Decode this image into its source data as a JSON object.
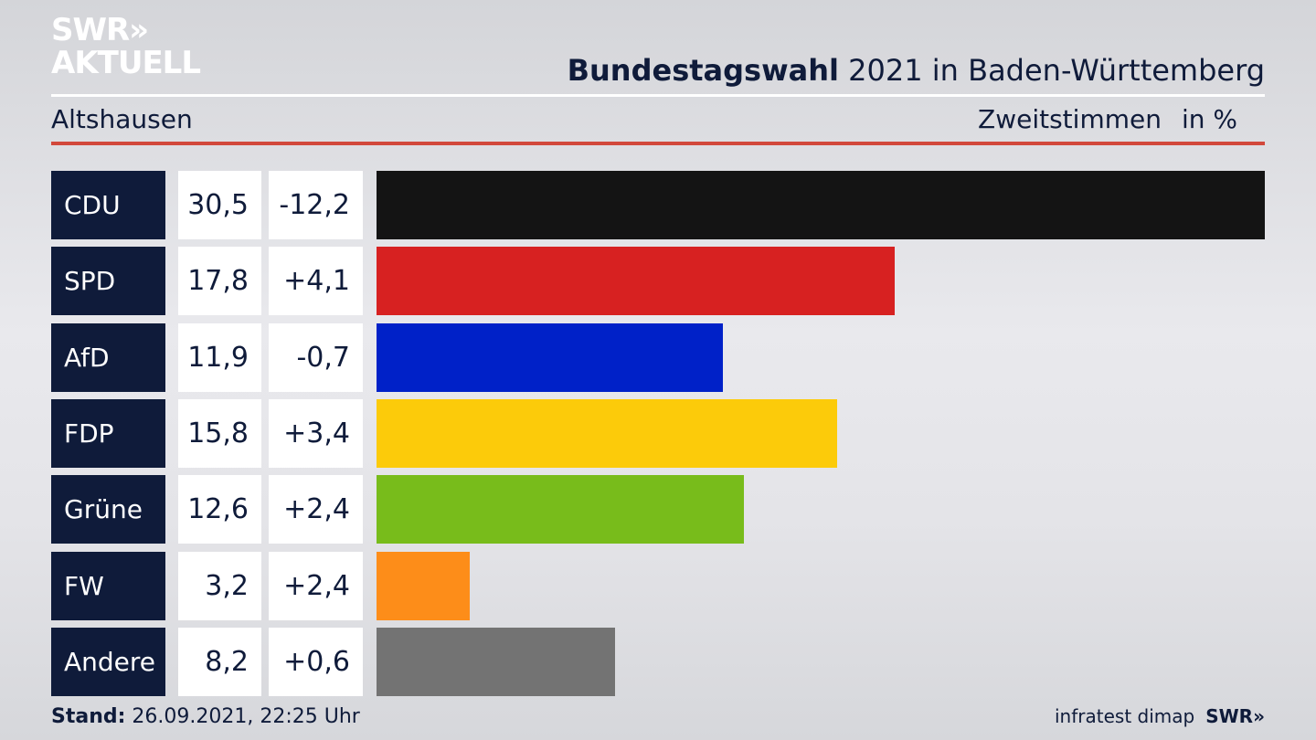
{
  "header": {
    "logo_line1": "SWR»",
    "logo_line2": "AKTUELL",
    "title_bold": "Bundestagswahl",
    "title_rest": " 2021 in Baden-Württemberg",
    "region": "Altshausen",
    "measure": "Zweitstimmen",
    "unit": "in %"
  },
  "chart_data": {
    "type": "bar",
    "orientation": "horizontal",
    "categories": [
      "CDU",
      "SPD",
      "AfD",
      "FDP",
      "Grüne",
      "FW",
      "Andere"
    ],
    "values": [
      30.5,
      17.8,
      11.9,
      15.8,
      12.6,
      3.2,
      8.2
    ],
    "value_labels": [
      "30,5",
      "17,8",
      "11,9",
      "15,8",
      "12,6",
      "3,2",
      "8,2"
    ],
    "change_labels": [
      "-12,2",
      "+4,1",
      "-0,7",
      "+3,4",
      "+2,4",
      "+2,4",
      "+0,6"
    ],
    "changes": [
      -12.2,
      4.1,
      -0.7,
      3.4,
      2.4,
      2.4,
      0.6
    ],
    "colors": [
      "#141414",
      "#d72121",
      "#0021c8",
      "#fccb0a",
      "#78bc1b",
      "#fd8d19",
      "#737373"
    ],
    "xlim": [
      0,
      30.5
    ],
    "grid": false,
    "legend": "none"
  },
  "footer": {
    "stand_label": "Stand:",
    "stand_value": " 26.09.2021, 22:25 Uhr",
    "source": "infratest dimap",
    "brand": "SWR»"
  }
}
